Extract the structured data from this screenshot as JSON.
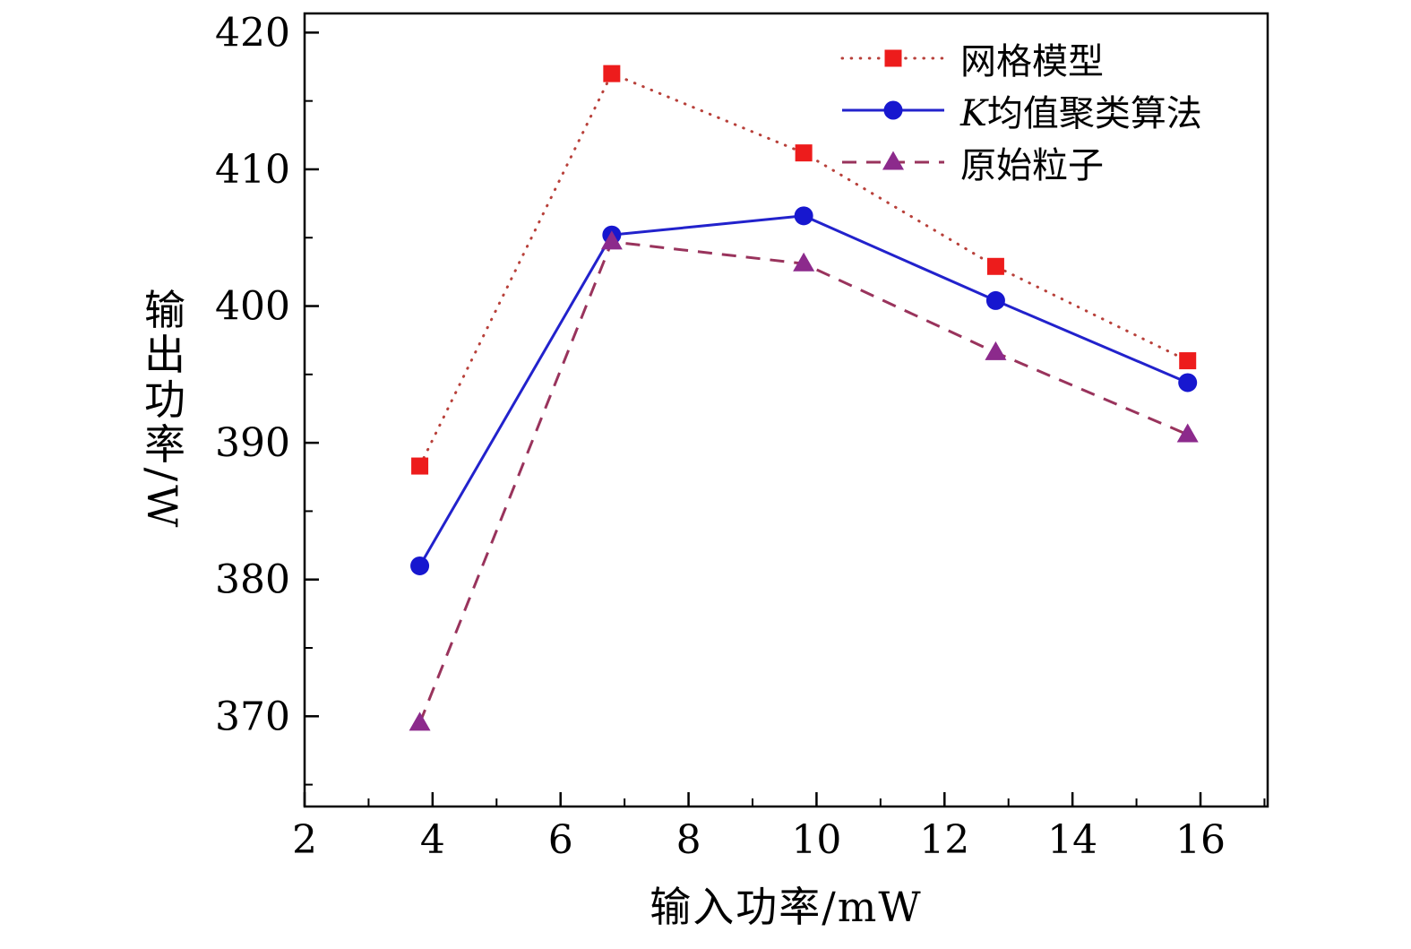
{
  "chart_data": {
    "type": "line",
    "title": "",
    "xlabel": "输入功率/mW",
    "ylabel": "输出功率/W",
    "xlim": [
      2,
      17.05
    ],
    "ylim": [
      363.4,
      421.4
    ],
    "x_ticks": [
      2,
      4,
      6,
      8,
      10,
      12,
      14,
      16
    ],
    "y_ticks": [
      370,
      380,
      390,
      400,
      410,
      420
    ],
    "x_minor_ticks": [
      3,
      5,
      7,
      9,
      11,
      13,
      15,
      17
    ],
    "y_minor_ticks": [
      365,
      375,
      385,
      395,
      405,
      415
    ],
    "x": [
      3.8,
      6.8,
      9.8,
      12.8,
      15.8
    ],
    "series": [
      {
        "name": "网格模型",
        "marker": "square",
        "marker_color": "#ed1c1c",
        "line_style": "dotted",
        "line_color": "#b8403a",
        "values": [
          388.3,
          417.0,
          411.2,
          402.9,
          396.0
        ]
      },
      {
        "name": "K均值聚类算法",
        "italic_prefix": 1,
        "marker": "circle",
        "marker_color": "#1717cf",
        "line_style": "solid",
        "line_color": "#2222cc",
        "values": [
          381.0,
          405.2,
          406.6,
          400.4,
          394.4
        ]
      },
      {
        "name": "原始粒子",
        "marker": "triangle",
        "marker_color": "#8c2a8c",
        "line_style": "dashed",
        "line_color": "#99335c",
        "values": [
          369.5,
          404.7,
          403.1,
          396.6,
          390.6
        ]
      }
    ],
    "legend_position": "top-right",
    "grid": false
  }
}
